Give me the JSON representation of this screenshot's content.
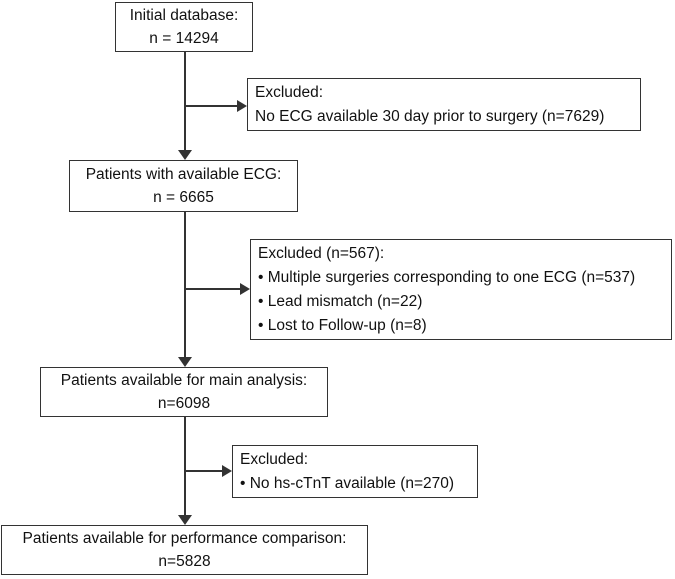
{
  "diagram": {
    "type": "patient-flowchart",
    "colors": {
      "background": "#ffffff",
      "box_border": "#333333",
      "connector": "#333333",
      "text": "#111111"
    },
    "boxes": {
      "initial_database": {
        "lines": [
          "Initial database:",
          "n = 14294"
        ]
      },
      "excluded_no_ecg": {
        "lines": [
          "Excluded:",
          "No ECG available 30 day prior to surgery (n=7629)"
        ]
      },
      "available_ecg": {
        "lines": [
          "Patients with available ECG:",
          "n = 6665"
        ]
      },
      "excluded_multiple": {
        "lines": [
          "Excluded (n=567):",
          "• Multiple surgeries corresponding to one ECG (n=537)",
          "• Lead mismatch (n=22)",
          "• Lost to Follow-up (n=8)"
        ]
      },
      "main_analysis": {
        "lines": [
          "Patients available for main analysis:",
          "n=6098"
        ]
      },
      "excluded_hs_ctnt": {
        "lines": [
          "Excluded:",
          "• No hs-cTnT available (n=270)"
        ]
      },
      "performance_comparison": {
        "lines": [
          "Patients available for performance comparison:",
          "n=5828"
        ]
      }
    }
  }
}
